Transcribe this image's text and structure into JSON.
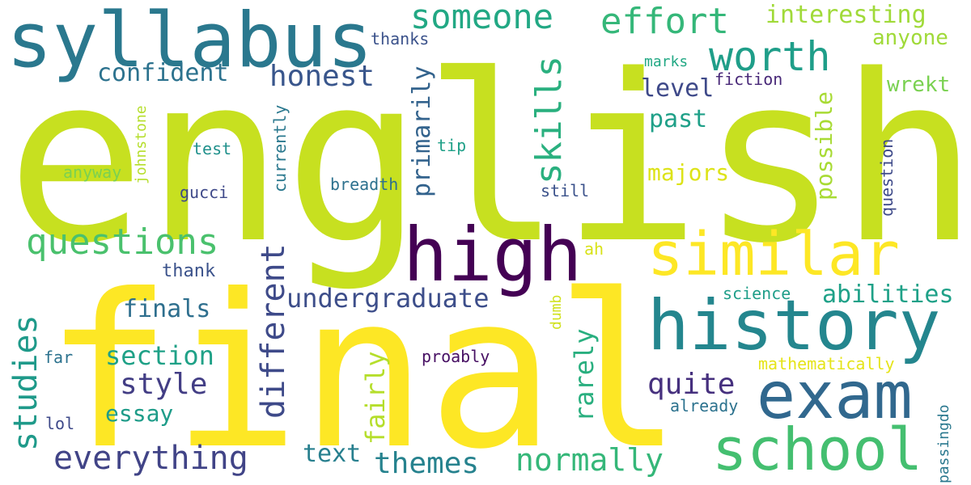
{
  "words": [
    {
      "id": "english",
      "text": "english",
      "color": "#c7e020"
    },
    {
      "id": "final",
      "text": "final",
      "color": "#fde725"
    },
    {
      "id": "syllabus",
      "text": "syllabus",
      "color": "#2a788e"
    },
    {
      "id": "high",
      "text": "high",
      "color": "#440154"
    },
    {
      "id": "history",
      "text": "history",
      "color": "#24868e"
    },
    {
      "id": "similar",
      "text": "similar",
      "color": "#fde725"
    },
    {
      "id": "exam",
      "text": "exam",
      "color": "#31688e"
    },
    {
      "id": "school",
      "text": "school",
      "color": "#44bf70"
    },
    {
      "id": "someone",
      "text": "someone",
      "color": "#22a884"
    },
    {
      "id": "effort",
      "text": "effort",
      "color": "#35b779"
    },
    {
      "id": "interesting",
      "text": "interesting",
      "color": "#a0da39"
    },
    {
      "id": "worth",
      "text": "worth",
      "color": "#1f9e89"
    },
    {
      "id": "anyone",
      "text": "anyone",
      "color": "#a0da39"
    },
    {
      "id": "wrekt",
      "text": "wrekt",
      "color": "#7ad151"
    },
    {
      "id": "confident",
      "text": "confident",
      "color": "#2c728e"
    },
    {
      "id": "honest",
      "text": "honest",
      "color": "#39568c"
    },
    {
      "id": "thanks",
      "text": "thanks",
      "color": "#3b528b"
    },
    {
      "id": "marks",
      "text": "marks",
      "color": "#22a884"
    },
    {
      "id": "fiction",
      "text": "fiction",
      "color": "#482878"
    },
    {
      "id": "level",
      "text": "level",
      "color": "#3e4989"
    },
    {
      "id": "past",
      "text": "past",
      "color": "#1fa088"
    },
    {
      "id": "majors",
      "text": "majors",
      "color": "#dde318"
    },
    {
      "id": "skills",
      "text": "skills",
      "color": "#2ab07f"
    },
    {
      "id": "primarily",
      "text": "primarily",
      "color": "#33638d"
    },
    {
      "id": "possible",
      "text": "possible",
      "color": "#a8db34"
    },
    {
      "id": "question",
      "text": "question",
      "color": "#3e4a89"
    },
    {
      "id": "currently",
      "text": "currently",
      "color": "#2a788e"
    },
    {
      "id": "johnstone",
      "text": "johnstone",
      "color": "#b5de2b"
    },
    {
      "id": "test",
      "text": "test",
      "color": "#21918c"
    },
    {
      "id": "tip",
      "text": "tip",
      "color": "#1fa088"
    },
    {
      "id": "anyway",
      "text": "anyway",
      "color": "#7ad151"
    },
    {
      "id": "breadth",
      "text": "breadth",
      "color": "#2d718e"
    },
    {
      "id": "still",
      "text": "still",
      "color": "#3b528b"
    },
    {
      "id": "gucci",
      "text": "gucci",
      "color": "#3e4989"
    },
    {
      "id": "questions",
      "text": "questions",
      "color": "#4ac16d"
    },
    {
      "id": "studies",
      "text": "studies",
      "color": "#1f9a8a"
    },
    {
      "id": "different",
      "text": "different",
      "color": "#3e4a89"
    },
    {
      "id": "undergraduate",
      "text": "undergraduate",
      "color": "#3d4e8a"
    },
    {
      "id": "thank",
      "text": "thank",
      "color": "#3b528b"
    },
    {
      "id": "finals",
      "text": "finals",
      "color": "#2e6f8e"
    },
    {
      "id": "section",
      "text": "section",
      "color": "#1fa187"
    },
    {
      "id": "style",
      "text": "style",
      "color": "#433e85"
    },
    {
      "id": "essay",
      "text": "essay",
      "color": "#1e9c89"
    },
    {
      "id": "everything",
      "text": "everything",
      "color": "#414487"
    },
    {
      "id": "far",
      "text": "far",
      "color": "#2c728e"
    },
    {
      "id": "lol",
      "text": "lol",
      "color": "#3e4989"
    },
    {
      "id": "fairly",
      "text": "fairly",
      "color": "#b5de2b"
    },
    {
      "id": "text",
      "text": "text",
      "color": "#277f8e"
    },
    {
      "id": "themes",
      "text": "themes",
      "color": "#26828e"
    },
    {
      "id": "rarely",
      "text": "rarely",
      "color": "#29af7f"
    },
    {
      "id": "ah",
      "text": "ah",
      "color": "#d8e219"
    },
    {
      "id": "dumb",
      "text": "dumb",
      "color": "#d0e11c"
    },
    {
      "id": "proably",
      "text": "proably",
      "color": "#471063"
    },
    {
      "id": "normally",
      "text": "normally",
      "color": "#35b779"
    },
    {
      "id": "quite",
      "text": "quite",
      "color": "#46307e"
    },
    {
      "id": "science",
      "text": "science",
      "color": "#1f9e89"
    },
    {
      "id": "abilities",
      "text": "abilities",
      "color": "#1fa188"
    },
    {
      "id": "mathematically",
      "text": "mathematically",
      "color": "#e5e419"
    },
    {
      "id": "already",
      "text": "already",
      "color": "#2c728e"
    },
    {
      "id": "passingdo",
      "text": "passingdo",
      "color": "#2a788e"
    }
  ]
}
